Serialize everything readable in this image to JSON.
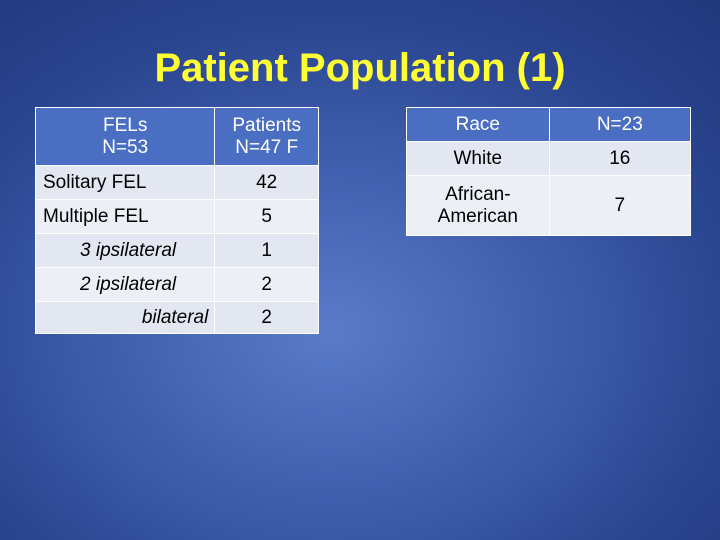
{
  "title": "Patient Population (1)",
  "fel_table": {
    "header": [
      "FELs\nN=53",
      "Patients\nN=47 F"
    ],
    "header_lines": [
      [
        "FELs",
        "N=53"
      ],
      [
        "Patients",
        "N=47 F"
      ]
    ],
    "rows": [
      {
        "label": "Solitary FEL",
        "value": "42"
      },
      {
        "label": "Multiple FEL",
        "value": "5"
      },
      {
        "label": "3 ipsilateral",
        "value": "1"
      },
      {
        "label": "2 ipsilateral",
        "value": "2"
      },
      {
        "label": "bilateral",
        "value": "2"
      }
    ]
  },
  "race_table": {
    "header": [
      "Race",
      "N=23"
    ],
    "rows": [
      {
        "label": "White",
        "value": "16"
      },
      {
        "label_lines": [
          "African-",
          "American"
        ],
        "value": "7"
      }
    ]
  }
}
